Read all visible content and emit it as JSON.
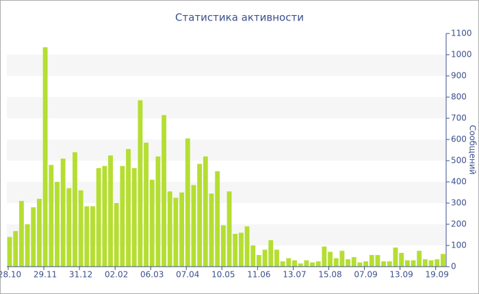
{
  "chart_data": {
    "type": "bar",
    "title": "Статистика активности",
    "y_label": "Сообщений",
    "categories": [
      "28.10",
      null,
      null,
      null,
      null,
      null,
      "29.11",
      null,
      null,
      null,
      null,
      null,
      "31.12",
      null,
      null,
      null,
      null,
      null,
      "02.02",
      null,
      null,
      null,
      null,
      null,
      "06.03",
      null,
      null,
      null,
      null,
      null,
      "07.04",
      null,
      null,
      null,
      null,
      null,
      "10.05",
      null,
      null,
      null,
      null,
      null,
      "11.06",
      null,
      null,
      null,
      null,
      null,
      "13.07",
      null,
      null,
      null,
      null,
      null,
      "15.08",
      null,
      null,
      null,
      null,
      null,
      "07.09",
      null,
      null,
      null,
      null,
      null,
      "13.09",
      null,
      null,
      null,
      null,
      null,
      "19.09",
      null
    ],
    "values": [
      140,
      168,
      310,
      200,
      280,
      320,
      1035,
      480,
      400,
      510,
      370,
      540,
      360,
      285,
      285,
      465,
      475,
      525,
      300,
      475,
      555,
      465,
      785,
      585,
      410,
      520,
      715,
      355,
      325,
      350,
      605,
      385,
      485,
      520,
      345,
      450,
      195,
      355,
      155,
      160,
      190,
      100,
      55,
      80,
      125,
      80,
      25,
      40,
      30,
      15,
      30,
      20,
      25,
      95,
      70,
      40,
      75,
      35,
      45,
      20,
      25,
      55,
      55,
      25,
      25,
      90,
      65,
      30,
      30,
      75,
      35,
      30,
      35,
      60
    ],
    "color": "#b5de32",
    "ylim": [
      0,
      1100
    ],
    "yticks": [
      0,
      100,
      200,
      300,
      400,
      500,
      600,
      700,
      800,
      900,
      1000,
      1100
    ],
    "grid": "bands",
    "band_color": "#f6f6f6",
    "y_axis_side": "right"
  }
}
